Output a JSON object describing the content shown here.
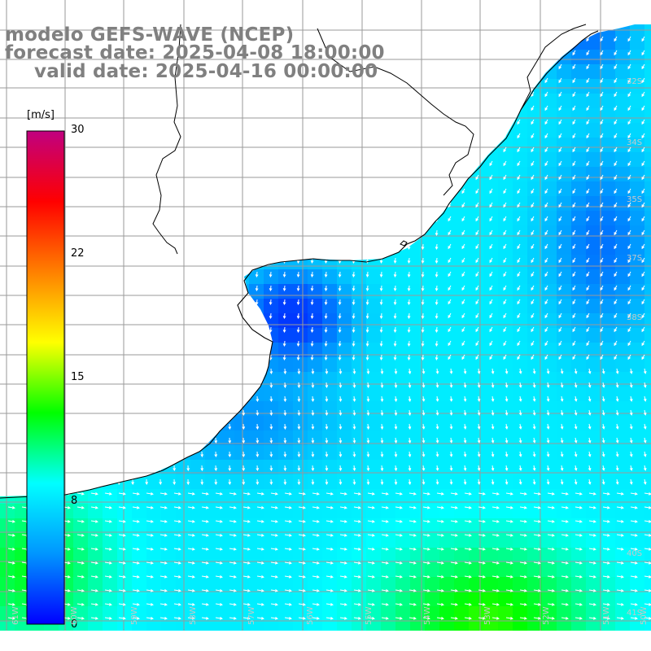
{
  "header": {
    "model": "modelo GEFS-WAVE (NCEP)",
    "forecast_date": "forecast date: 2025-04-08 18:00:00",
    "valid_date": "valid date: 2025-04-16 00:00:00"
  },
  "colorbar": {
    "unit": "[m/s]",
    "min": 0,
    "max": 30,
    "ticks": [
      "30",
      "22",
      "15",
      "8",
      "0"
    ],
    "colors": [
      "#0000ff",
      "#0096ff",
      "#00ffff",
      "#00ff00",
      "#ffff00",
      "#ff8000",
      "#ff0000",
      "#c00080"
    ]
  },
  "grid": {
    "lat_labels": [
      "32S",
      "34S",
      "35S",
      "37S",
      "38S",
      "40S",
      "41S"
    ],
    "lon_labels": [
      "61W",
      "60W",
      "59W",
      "58W",
      "57W",
      "56W",
      "55W",
      "54W",
      "53W",
      "52W",
      "51W",
      "50W"
    ]
  },
  "field": {
    "variable": "wind speed",
    "palette_note": "blue = calm, cyan ~8 m/s, green ~12 m/s"
  }
}
